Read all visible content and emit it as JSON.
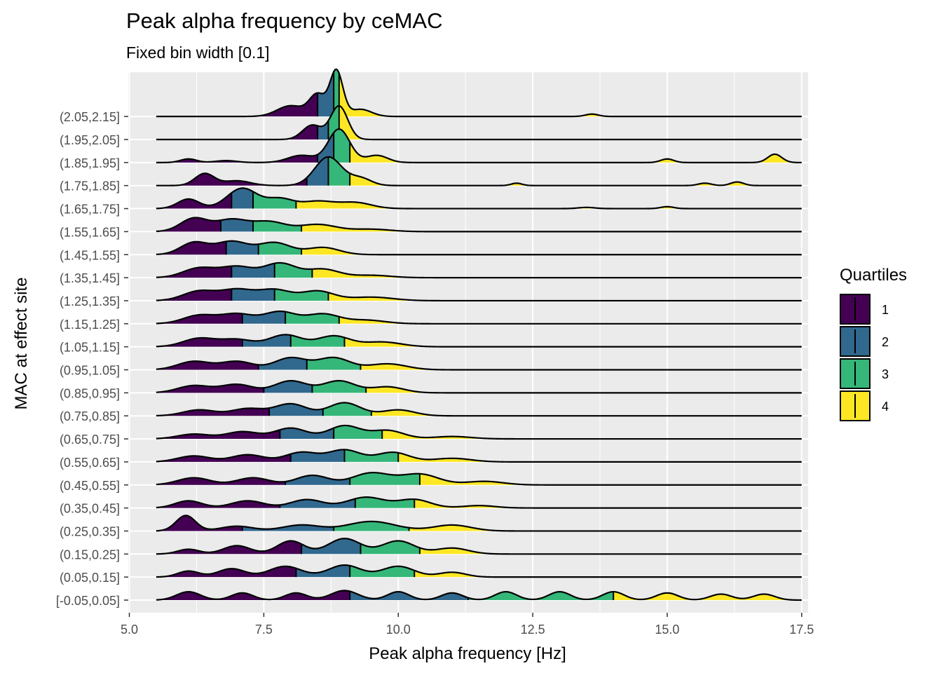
{
  "chart_data": {
    "type": "ridgeline",
    "title": "Peak alpha frequency by ceMAC",
    "subtitle": "Fixed bin width [0.1]",
    "xlabel": "Peak alpha frequency [Hz]",
    "ylabel": "MAC at effect site",
    "xlim": [
      4.98,
      17.62
    ],
    "x_ticks": [
      5.0,
      7.5,
      10.0,
      12.5,
      15.0,
      17.5
    ],
    "x_tick_labels": [
      "5.0",
      "7.5",
      "10.0",
      "12.5",
      "15.0",
      "17.5"
    ],
    "grid": true,
    "legend": {
      "title": "Quartiles",
      "position": "right",
      "entries": [
        {
          "label": "1",
          "color": "#440154"
        },
        {
          "label": "2",
          "color": "#31688E"
        },
        {
          "label": "3",
          "color": "#35B779"
        },
        {
          "label": "4",
          "color": "#FDE725"
        }
      ]
    },
    "x_range": [
      5.5,
      17.5
    ],
    "groups": [
      {
        "label": "[-0.05,0.05]",
        "q1": 9.1,
        "q2": 11.3,
        "q3": 14.0,
        "peaks": [
          [
            6.1,
            0.35,
            0.22
          ],
          [
            7.1,
            0.3,
            0.2
          ],
          [
            8.1,
            0.3,
            0.2
          ],
          [
            9.0,
            0.4,
            0.25
          ],
          [
            10.0,
            0.35,
            0.2
          ],
          [
            11.0,
            0.3,
            0.2
          ],
          [
            12.0,
            0.35,
            0.2
          ],
          [
            13.0,
            0.35,
            0.2
          ],
          [
            14.0,
            0.35,
            0.2
          ],
          [
            15.0,
            0.3,
            0.2
          ],
          [
            16.0,
            0.25,
            0.2
          ],
          [
            16.8,
            0.25,
            0.2
          ]
        ]
      },
      {
        "label": "(0.05,0.15]",
        "q1": 8.1,
        "q2": 9.1,
        "q3": 10.3,
        "peaks": [
          [
            6.1,
            0.25,
            0.2
          ],
          [
            6.9,
            0.35,
            0.25
          ],
          [
            7.9,
            0.45,
            0.3
          ],
          [
            9.0,
            0.5,
            0.3
          ],
          [
            10.0,
            0.45,
            0.3
          ],
          [
            11.0,
            0.2,
            0.25
          ]
        ]
      },
      {
        "label": "(0.15,0.25]",
        "q1": 8.2,
        "q2": 9.3,
        "q3": 10.4,
        "peaks": [
          [
            6.1,
            0.2,
            0.2
          ],
          [
            7.0,
            0.35,
            0.25
          ],
          [
            8.0,
            0.55,
            0.25
          ],
          [
            9.0,
            0.65,
            0.3
          ],
          [
            10.0,
            0.55,
            0.3
          ],
          [
            11.0,
            0.25,
            0.3
          ]
        ]
      },
      {
        "label": "(0.25,0.35]",
        "q1": 7.1,
        "q2": 8.8,
        "q3": 10.2,
        "peaks": [
          [
            6.05,
            0.65,
            0.18
          ],
          [
            7.0,
            0.2,
            0.3
          ],
          [
            8.2,
            0.25,
            0.35
          ],
          [
            9.5,
            0.4,
            0.45
          ],
          [
            11.0,
            0.25,
            0.35
          ]
        ]
      },
      {
        "label": "(0.35,0.45]",
        "q1": 7.8,
        "q2": 9.2,
        "q3": 10.3,
        "peaks": [
          [
            6.1,
            0.3,
            0.25
          ],
          [
            7.2,
            0.3,
            0.3
          ],
          [
            8.3,
            0.35,
            0.3
          ],
          [
            9.4,
            0.45,
            0.35
          ],
          [
            10.3,
            0.35,
            0.3
          ],
          [
            11.5,
            0.1,
            0.3
          ]
        ]
      },
      {
        "label": "(0.45,0.55]",
        "q1": 7.9,
        "q2": 9.1,
        "q3": 10.4,
        "peaks": [
          [
            6.2,
            0.3,
            0.3
          ],
          [
            7.3,
            0.3,
            0.3
          ],
          [
            8.4,
            0.4,
            0.3
          ],
          [
            9.5,
            0.5,
            0.35
          ],
          [
            10.4,
            0.45,
            0.35
          ],
          [
            11.6,
            0.15,
            0.35
          ]
        ]
      },
      {
        "label": "(0.55,0.65]",
        "q1": 8.0,
        "q2": 9.0,
        "q3": 10.0,
        "peaks": [
          [
            6.2,
            0.25,
            0.3
          ],
          [
            7.2,
            0.3,
            0.3
          ],
          [
            8.2,
            0.4,
            0.3
          ],
          [
            9.0,
            0.5,
            0.3
          ],
          [
            9.9,
            0.4,
            0.3
          ],
          [
            11.0,
            0.15,
            0.35
          ]
        ]
      },
      {
        "label": "(0.65,0.75]",
        "q1": 7.8,
        "q2": 8.8,
        "q3": 9.7,
        "peaks": [
          [
            6.2,
            0.2,
            0.3
          ],
          [
            7.1,
            0.3,
            0.3
          ],
          [
            8.0,
            0.45,
            0.3
          ],
          [
            9.0,
            0.55,
            0.3
          ],
          [
            9.8,
            0.35,
            0.3
          ],
          [
            11.0,
            0.1,
            0.35
          ]
        ]
      },
      {
        "label": "(0.75,0.85]",
        "q1": 7.6,
        "q2": 8.6,
        "q3": 9.5,
        "peaks": [
          [
            6.3,
            0.25,
            0.3
          ],
          [
            7.2,
            0.3,
            0.3
          ],
          [
            8.0,
            0.5,
            0.3
          ],
          [
            9.0,
            0.55,
            0.3
          ],
          [
            10.0,
            0.25,
            0.3
          ]
        ]
      },
      {
        "label": "(0.85,0.95]",
        "q1": 7.5,
        "q2": 8.4,
        "q3": 9.4,
        "peaks": [
          [
            6.2,
            0.3,
            0.3
          ],
          [
            7.0,
            0.35,
            0.3
          ],
          [
            8.0,
            0.5,
            0.3
          ],
          [
            8.9,
            0.5,
            0.3
          ],
          [
            9.8,
            0.25,
            0.3
          ]
        ]
      },
      {
        "label": "(0.95,1.05]",
        "q1": 7.4,
        "q2": 8.3,
        "q3": 9.3,
        "peaks": [
          [
            6.2,
            0.35,
            0.3
          ],
          [
            7.0,
            0.35,
            0.3
          ],
          [
            8.0,
            0.5,
            0.3
          ],
          [
            8.8,
            0.5,
            0.3
          ],
          [
            9.8,
            0.25,
            0.35
          ]
        ]
      },
      {
        "label": "(1.05,1.15]",
        "q1": 7.1,
        "q2": 8.0,
        "q3": 9.0,
        "peaks": [
          [
            6.3,
            0.35,
            0.3
          ],
          [
            7.0,
            0.3,
            0.3
          ],
          [
            7.9,
            0.5,
            0.3
          ],
          [
            8.8,
            0.45,
            0.3
          ],
          [
            9.7,
            0.2,
            0.35
          ]
        ]
      },
      {
        "label": "(1.15,1.25]",
        "q1": 7.1,
        "q2": 7.9,
        "q3": 8.9,
        "peaks": [
          [
            6.3,
            0.35,
            0.3
          ],
          [
            7.0,
            0.4,
            0.3
          ],
          [
            7.8,
            0.5,
            0.3
          ],
          [
            8.6,
            0.4,
            0.3
          ],
          [
            9.4,
            0.15,
            0.35
          ]
        ]
      },
      {
        "label": "(1.25,1.35]",
        "q1": 6.9,
        "q2": 7.7,
        "q3": 8.7,
        "peaks": [
          [
            6.3,
            0.4,
            0.3
          ],
          [
            7.0,
            0.45,
            0.3
          ],
          [
            7.7,
            0.45,
            0.3
          ],
          [
            8.5,
            0.4,
            0.3
          ],
          [
            9.5,
            0.15,
            0.4
          ]
        ]
      },
      {
        "label": "(1.35,1.45]",
        "q1": 6.9,
        "q2": 7.7,
        "q3": 8.4,
        "peaks": [
          [
            6.3,
            0.4,
            0.3
          ],
          [
            7.0,
            0.45,
            0.3
          ],
          [
            7.8,
            0.6,
            0.3
          ],
          [
            8.6,
            0.35,
            0.3
          ],
          [
            9.5,
            0.1,
            0.35
          ]
        ]
      },
      {
        "label": "(1.45,1.55]",
        "q1": 6.8,
        "q2": 7.4,
        "q3": 8.2,
        "peaks": [
          [
            6.2,
            0.5,
            0.25
          ],
          [
            6.9,
            0.55,
            0.3
          ],
          [
            7.7,
            0.5,
            0.3
          ],
          [
            8.6,
            0.3,
            0.3
          ]
        ]
      },
      {
        "label": "(1.55,1.65]",
        "q1": 6.7,
        "q2": 7.3,
        "q3": 8.2,
        "peaks": [
          [
            6.2,
            0.55,
            0.25
          ],
          [
            6.9,
            0.5,
            0.3
          ],
          [
            7.6,
            0.4,
            0.3
          ],
          [
            8.5,
            0.3,
            0.35
          ],
          [
            9.5,
            0.1,
            0.35
          ]
        ]
      },
      {
        "label": "(1.65,1.75]",
        "q1": 6.9,
        "q2": 7.3,
        "q3": 8.1,
        "peaks": [
          [
            6.1,
            0.4,
            0.2
          ],
          [
            7.1,
            0.85,
            0.28
          ],
          [
            7.8,
            0.4,
            0.25
          ],
          [
            8.5,
            0.3,
            0.3
          ],
          [
            9.2,
            0.25,
            0.3
          ],
          [
            13.5,
            0.05,
            0.15
          ],
          [
            15.0,
            0.08,
            0.12
          ]
        ]
      },
      {
        "label": "(1.75,1.85]",
        "q1": 8.3,
        "q2": 8.7,
        "q3": 9.1,
        "peaks": [
          [
            6.4,
            0.5,
            0.18
          ],
          [
            7.0,
            0.2,
            0.25
          ],
          [
            8.7,
            1.2,
            0.25
          ],
          [
            9.3,
            0.3,
            0.2
          ],
          [
            12.2,
            0.1,
            0.1
          ],
          [
            15.7,
            0.1,
            0.12
          ],
          [
            16.3,
            0.15,
            0.12
          ]
        ]
      },
      {
        "label": "(1.85,1.95]",
        "q1": 8.5,
        "q2": 8.8,
        "q3": 9.1,
        "peaks": [
          [
            6.1,
            0.15,
            0.15
          ],
          [
            6.8,
            0.08,
            0.2
          ],
          [
            8.2,
            0.3,
            0.25
          ],
          [
            8.9,
            1.4,
            0.2
          ],
          [
            9.6,
            0.3,
            0.2
          ],
          [
            15.0,
            0.15,
            0.12
          ],
          [
            17.0,
            0.35,
            0.13
          ]
        ]
      },
      {
        "label": "(1.95,2.05]",
        "q1": 8.5,
        "q2": 8.7,
        "q3": 8.9,
        "peaks": [
          [
            8.4,
            0.6,
            0.18
          ],
          [
            8.9,
            1.4,
            0.16
          ]
        ]
      },
      {
        "label": "(2.05,2.15]",
        "q1": 8.5,
        "q2": 8.8,
        "q3": 8.9,
        "peaks": [
          [
            8.0,
            0.45,
            0.25
          ],
          [
            8.5,
            0.9,
            0.15
          ],
          [
            8.85,
            1.9,
            0.12
          ],
          [
            9.3,
            0.3,
            0.2
          ],
          [
            13.6,
            0.1,
            0.12
          ]
        ]
      }
    ]
  }
}
